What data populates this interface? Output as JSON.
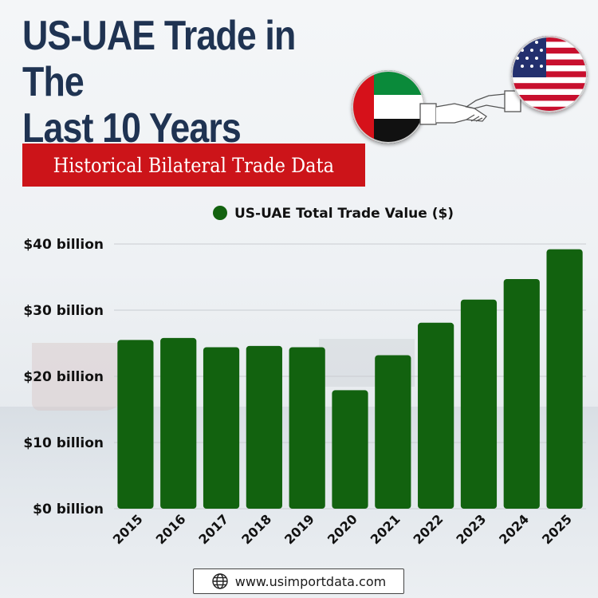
{
  "header": {
    "title_line1": "US-UAE Trade in The",
    "title_line2": "Last 10 Years",
    "subtitle": "Historical Bilateral Trade Data"
  },
  "colors": {
    "title": "#1f3352",
    "subtitle_bg": "#cc1419",
    "bar": "#12620f"
  },
  "icons": [
    "uae-flag-icon",
    "us-flag-icon",
    "handshake-icon",
    "globe-icon"
  ],
  "chart_data": {
    "type": "bar",
    "title": "",
    "xlabel": "",
    "ylabel": "",
    "legend": "top-center",
    "grid": true,
    "ylim": [
      0,
      40
    ],
    "yticks": [
      {
        "value": 0,
        "label": "$0 billion"
      },
      {
        "value": 10,
        "label": "$10 billion"
      },
      {
        "value": 20,
        "label": "$20 billion"
      },
      {
        "value": 30,
        "label": "$30 billion"
      },
      {
        "value": 40,
        "label": "$40 billion"
      }
    ],
    "categories": [
      "2015",
      "2016",
      "2017",
      "2018",
      "2019",
      "2020",
      "2021",
      "2022",
      "2023",
      "2024",
      "2025"
    ],
    "series": [
      {
        "name": "US-UAE Total Trade Value ($)",
        "color": "#12620f",
        "values": [
          25.5,
          25.8,
          24.4,
          24.6,
          24.4,
          17.9,
          23.2,
          28.1,
          31.6,
          34.7,
          39.2
        ]
      }
    ]
  },
  "footer": {
    "url": "www.usimportdata.com"
  }
}
